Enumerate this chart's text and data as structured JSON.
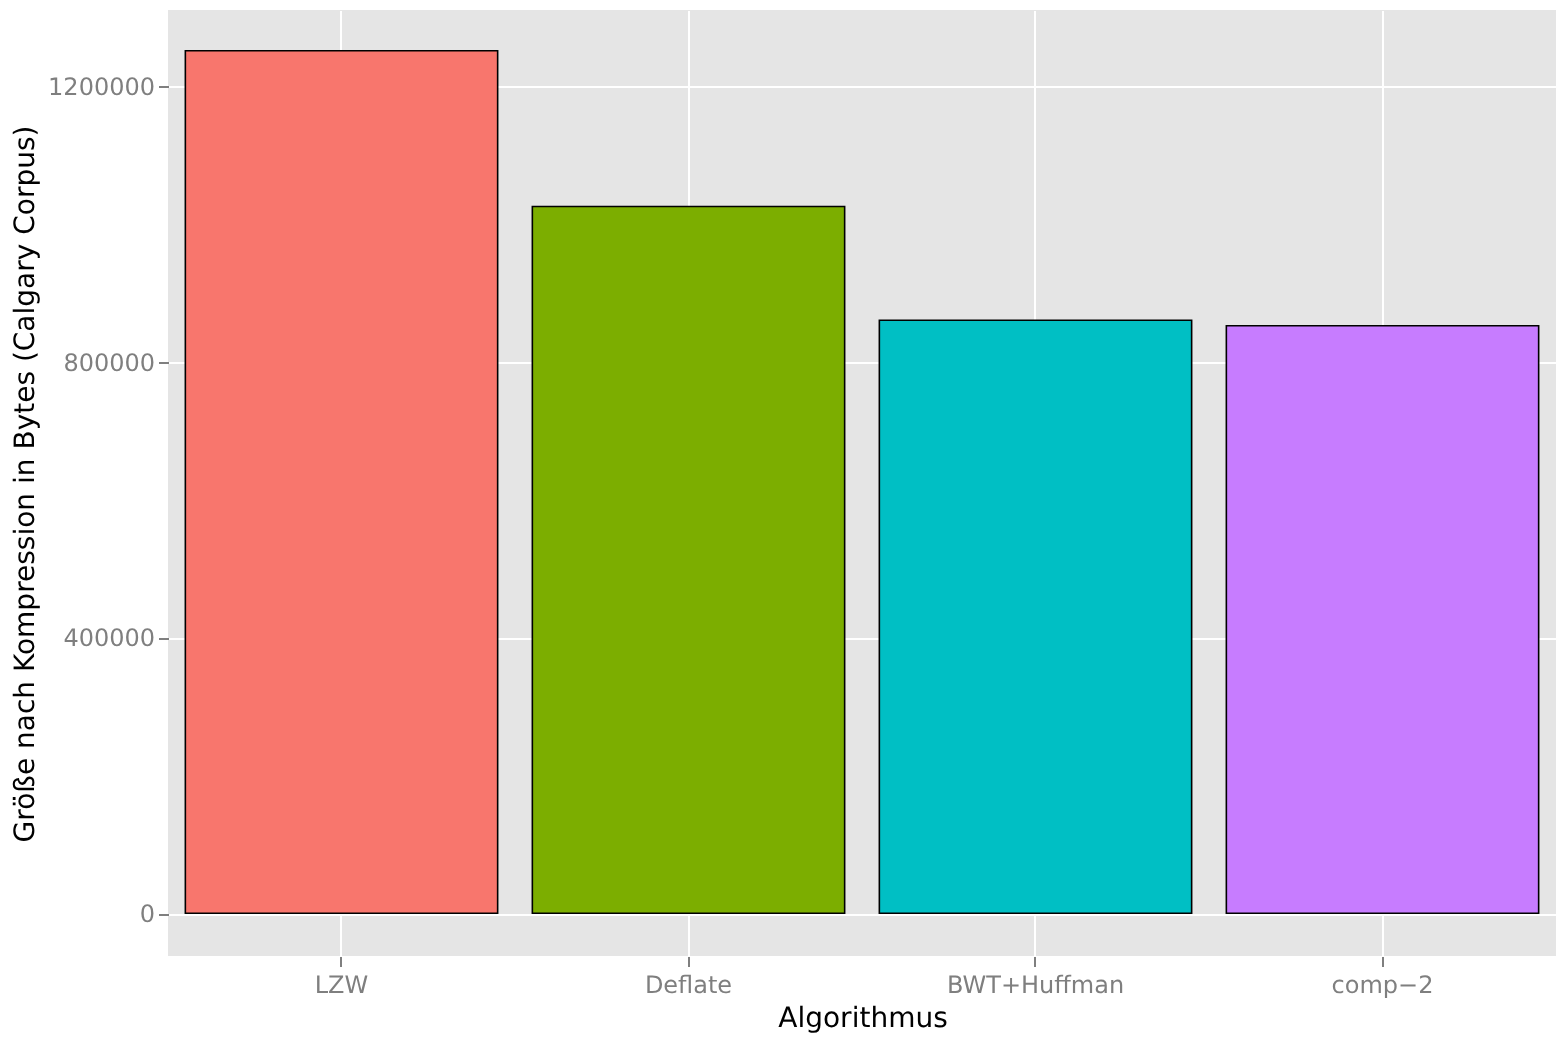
{
  "chart_data": {
    "type": "bar",
    "xlabel": "Algorithmus",
    "ylabel": "Größe nach Kompression in Bytes (Calgary Corpus)",
    "categories": [
      "LZW",
      "Deflate",
      "BWT+Huffman",
      "comp−2"
    ],
    "values": [
      1251000,
      1025000,
      860000,
      852000
    ],
    "colors": [
      "#f8766d",
      "#7cae00",
      "#00bfc4",
      "#c77cff"
    ],
    "ylim": [
      -62000,
      1310000
    ],
    "yticks": [
      0,
      400000,
      800000,
      1200000
    ],
    "grid": true
  }
}
